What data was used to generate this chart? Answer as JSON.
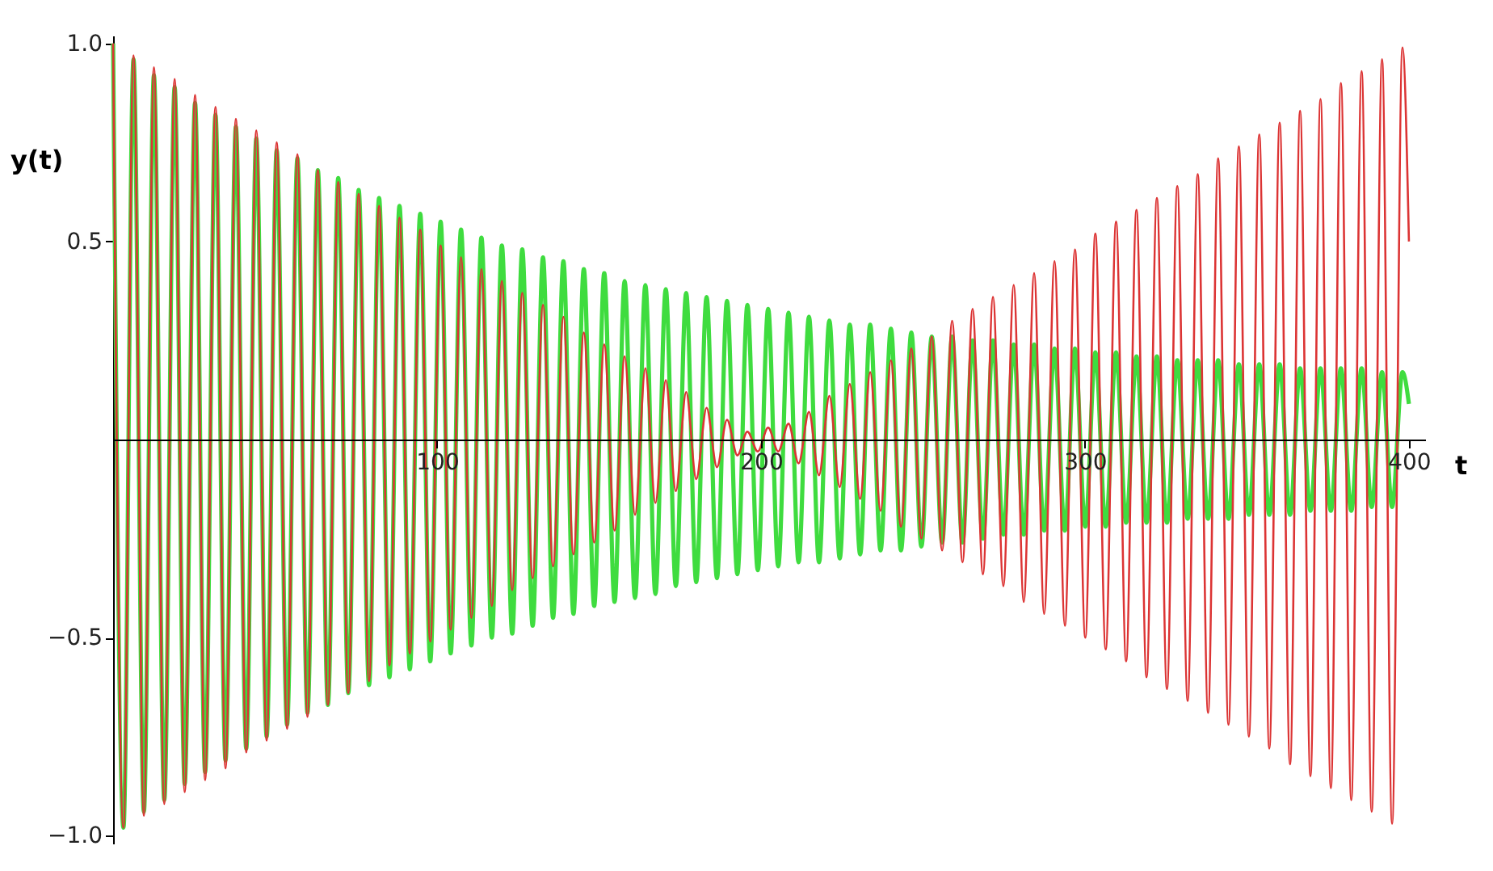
{
  "chart_data": {
    "type": "line",
    "xlabel": "t",
    "ylabel": "y(t)",
    "x": [
      0,
      3.2,
      6.3,
      9.5,
      12.6,
      15.8,
      19.0,
      22.1,
      25.3,
      28.4,
      31.6,
      34.7,
      37.9,
      41.1,
      44.2,
      47.4,
      50.5,
      53.7,
      56.9,
      60.0,
      63.2,
      66.3,
      69.5,
      72.6,
      75.8,
      79.0,
      82.1,
      85.3,
      88.4,
      91.6,
      94.8,
      97.9,
      101.1,
      104.2,
      107.4,
      110.6,
      113.7,
      116.9,
      120.0,
      123.2,
      126.3,
      129.5,
      132.7,
      135.8,
      139.0,
      142.1,
      145.3,
      148.5,
      151.6,
      154.8,
      157.9,
      161.1,
      164.3,
      167.4,
      170.6,
      173.7,
      176.9,
      180.0,
      183.2,
      186.4,
      189.5,
      192.7,
      195.8,
      199.0,
      202.2,
      205.3,
      208.5,
      211.6,
      214.8,
      217.9,
      221.1,
      224.3,
      227.4,
      230.6,
      233.7,
      236.9,
      240.1,
      243.2,
      246.4,
      249.5,
      252.7,
      255.9,
      259.0,
      262.2,
      265.3,
      268.5,
      271.6,
      274.8,
      278.0,
      281.1,
      284.3,
      287.4,
      290.6,
      293.8,
      296.9,
      300.1,
      303.2,
      306.4,
      309.6,
      312.7,
      315.9,
      319.0,
      322.2,
      325.3,
      328.5,
      331.7,
      334.8,
      338.0,
      341.1,
      344.3,
      347.5,
      350.6,
      353.8,
      356.9,
      360.1,
      363.3,
      366.4,
      369.6,
      372.7,
      375.9,
      379.0,
      382.2,
      385.4,
      388.5,
      391.7,
      394.8,
      398.0,
      400
    ],
    "series": [
      {
        "color": "#3fdc3f",
        "values": [
          1.0,
          -0.98,
          0.96,
          -0.94,
          0.92,
          -0.91,
          0.89,
          -0.87,
          0.85,
          -0.84,
          0.82,
          -0.81,
          0.79,
          -0.78,
          0.76,
          -0.75,
          0.73,
          -0.72,
          0.71,
          -0.69,
          0.68,
          -0.67,
          0.66,
          -0.64,
          0.63,
          -0.62,
          0.61,
          -0.6,
          0.59,
          -0.58,
          0.57,
          -0.56,
          0.55,
          -0.54,
          0.53,
          -0.52,
          0.51,
          -0.5,
          0.49,
          -0.49,
          0.48,
          -0.47,
          0.46,
          -0.45,
          0.45,
          -0.44,
          0.43,
          -0.42,
          0.42,
          -0.41,
          0.4,
          -0.4,
          0.39,
          -0.39,
          0.38,
          -0.37,
          0.37,
          -0.36,
          0.36,
          -0.35,
          0.35,
          -0.34,
          0.34,
          -0.33,
          0.33,
          -0.32,
          0.32,
          -0.31,
          0.31,
          -0.31,
          0.3,
          -0.3,
          0.29,
          -0.29,
          0.29,
          -0.28,
          0.28,
          -0.28,
          0.27,
          -0.27,
          0.26,
          -0.26,
          0.26,
          -0.26,
          0.25,
          -0.25,
          0.25,
          -0.24,
          0.24,
          -0.24,
          0.24,
          -0.23,
          0.23,
          -0.23,
          0.23,
          -0.22,
          0.22,
          -0.22,
          0.22,
          -0.21,
          0.21,
          -0.21,
          0.21,
          -0.21,
          0.2,
          -0.2,
          0.2,
          -0.2,
          0.2,
          -0.2,
          0.19,
          -0.19,
          0.19,
          -0.19,
          0.19,
          -0.19,
          0.18,
          -0.18,
          0.18,
          -0.18,
          0.18,
          -0.18,
          0.18,
          -0.17,
          0.17,
          -0.17,
          0.17,
          0.09
        ]
      },
      {
        "color": "#dc3434",
        "values": [
          1.0,
          -0.98,
          0.97,
          -0.95,
          0.94,
          -0.92,
          0.91,
          -0.89,
          0.87,
          -0.86,
          0.84,
          -0.83,
          0.81,
          -0.79,
          0.78,
          -0.76,
          0.75,
          -0.73,
          0.72,
          -0.7,
          0.68,
          -0.67,
          0.65,
          -0.64,
          0.62,
          -0.61,
          0.59,
          -0.57,
          0.56,
          -0.54,
          0.53,
          -0.51,
          0.49,
          -0.48,
          0.46,
          -0.45,
          0.43,
          -0.42,
          0.4,
          -0.38,
          0.37,
          -0.35,
          0.34,
          -0.32,
          0.31,
          -0.29,
          0.27,
          -0.26,
          0.24,
          -0.23,
          0.21,
          -0.19,
          0.18,
          -0.16,
          0.15,
          -0.13,
          0.12,
          -0.1,
          0.08,
          -0.07,
          0.05,
          -0.04,
          0.02,
          -0.03,
          0.03,
          -0.03,
          0.04,
          -0.06,
          0.07,
          -0.09,
          0.11,
          -0.12,
          0.14,
          -0.15,
          0.17,
          -0.18,
          0.2,
          -0.22,
          0.23,
          -0.25,
          0.26,
          -0.28,
          0.3,
          -0.31,
          0.33,
          -0.34,
          0.36,
          -0.37,
          0.39,
          -0.41,
          0.42,
          -0.44,
          0.45,
          -0.47,
          0.48,
          -0.5,
          0.52,
          -0.53,
          0.55,
          -0.56,
          0.58,
          -0.6,
          0.61,
          -0.63,
          0.64,
          -0.66,
          0.67,
          -0.69,
          0.71,
          -0.72,
          0.74,
          -0.75,
          0.77,
          -0.78,
          0.8,
          -0.82,
          0.83,
          -0.85,
          0.86,
          -0.88,
          0.9,
          -0.91,
          0.93,
          -0.94,
          0.96,
          -0.97,
          0.99,
          0.5
        ]
      }
    ],
    "xlim": [
      0,
      405
    ],
    "ylim": [
      -1.02,
      1.02
    ],
    "xticks": [
      100,
      200,
      300,
      400
    ],
    "yticks": [
      {
        "value": 1,
        "label": "1.0"
      },
      {
        "value": 0.5,
        "label": "0.5"
      },
      {
        "value": -0.5,
        "label": "−0.5"
      },
      {
        "value": -1,
        "label": "−1.0"
      }
    ],
    "grid": false
  }
}
